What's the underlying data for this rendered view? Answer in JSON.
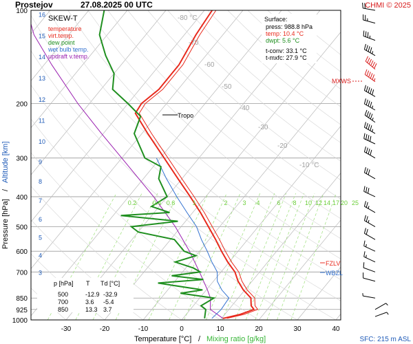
{
  "header": {
    "station": "Prostejov",
    "datetime": "27.08.2025 00 UTC",
    "credit": "CHMI © 2025"
  },
  "legend": {
    "title": "SKEW-T",
    "items": [
      {
        "label": "temperature",
        "color": "#e8291c"
      },
      {
        "label": "virt.temp.",
        "color": "#e8291c"
      },
      {
        "label": "dew point",
        "color": "#1f8f1f"
      },
      {
        "label": "wet bulb temp.",
        "color": "#3070d0"
      },
      {
        "label": "updraft v.temp.",
        "color": "#9a1fb0"
      }
    ]
  },
  "surface": {
    "title": "Surface:",
    "press": "press: 988.8 hPa",
    "temp": "temp: 10.4 °C",
    "dwpt": "dwpt: 5.6 °C",
    "tconv": "t-conv: 33.1 °C",
    "tmxfc": "t-mxfc: 27.9 °C"
  },
  "table": {
    "headers": [
      "p [hPa]",
      "T",
      "Td [°C]"
    ],
    "rows": [
      [
        "500",
        "-12.9",
        "-32.9"
      ],
      [
        "700",
        "3.6",
        "-5.4"
      ],
      [
        "850",
        "13.3",
        "3.7"
      ]
    ]
  },
  "markers": {
    "tropo": "Tropo",
    "mxws": "MXWS",
    "fzlv": "FZLV",
    "wbzl": "WBZL"
  },
  "axes": {
    "xlabel_temp": "Temperature [°C]",
    "xlabel_sep": " / ",
    "xlabel_mix": "Mixing ratio [g/kg]",
    "ylabel_pressure": "Pressure [hPa]",
    "ylabel_sep": " / ",
    "ylabel_altitude": "Altitude [km]",
    "sfc_note": "SFC: 215 m ASL"
  },
  "colors": {
    "temperature": "#e8291c",
    "dewpoint": "#1f8f1f",
    "wetbulb": "#3070d0",
    "updraft": "#9a1fb0",
    "isobar": "#9a9a9a",
    "isotherm": "#b8b8b8",
    "mixing": "#9de07a",
    "altitude": "#1f5bb8",
    "title_red": "#d81b1b"
  },
  "chart_data": {
    "type": "line",
    "title": "SKEW-T",
    "xlim": [
      -35,
      43
    ],
    "ylim_hpa": [
      1000,
      100
    ],
    "x_ticks": [
      -30,
      -20,
      -10,
      0,
      10,
      20,
      30,
      40
    ],
    "pressure_ticks": [
      100,
      200,
      300,
      400,
      500,
      600,
      700,
      850,
      925,
      1000
    ],
    "altitude_ticks_km": [
      1,
      2,
      3,
      4,
      5,
      6,
      7,
      8,
      9,
      10,
      11,
      12,
      13,
      14,
      15,
      16
    ],
    "isotherm_labels": [
      -80,
      -70,
      -60,
      -50,
      -40,
      -30,
      -20,
      -10
    ],
    "mixing_ratio_labels": [
      0.2,
      0.4,
      0.6,
      1,
      2,
      3,
      4,
      6,
      8,
      10,
      12,
      14,
      17,
      20,
      25
    ],
    "series": [
      {
        "name": "temperature",
        "points": [
          [
            988.8,
            10.4
          ],
          [
            960,
            14.0
          ],
          [
            925,
            16.5
          ],
          [
            900,
            15.0
          ],
          [
            850,
            13.3
          ],
          [
            800,
            9.6
          ],
          [
            750,
            6.4
          ],
          [
            700,
            3.6
          ],
          [
            650,
            -0.4
          ],
          [
            600,
            -4.3
          ],
          [
            550,
            -8.3
          ],
          [
            500,
            -12.9
          ],
          [
            450,
            -18.0
          ],
          [
            400,
            -24.0
          ],
          [
            350,
            -31.0
          ],
          [
            300,
            -39.0
          ],
          [
            250,
            -48.5
          ],
          [
            215,
            -56.0
          ],
          [
            200,
            -56.5
          ],
          [
            180,
            -55.0
          ],
          [
            150,
            -55.0
          ],
          [
            120,
            -57.0
          ],
          [
            100,
            -58.0
          ]
        ]
      },
      {
        "name": "dew point",
        "points": [
          [
            988.8,
            5.6
          ],
          [
            925,
            4.0
          ],
          [
            900,
            2.0
          ],
          [
            850,
            3.7
          ],
          [
            820,
            -6.0
          ],
          [
            800,
            -1.0
          ],
          [
            760,
            -14.0
          ],
          [
            740,
            -3.0
          ],
          [
            720,
            -12.0
          ],
          [
            700,
            -5.4
          ],
          [
            680,
            -8.0
          ],
          [
            650,
            -14.0
          ],
          [
            620,
            -10.0
          ],
          [
            600,
            -14.0
          ],
          [
            550,
            -19.0
          ],
          [
            520,
            -30.0
          ],
          [
            500,
            -32.9
          ],
          [
            480,
            -22.0
          ],
          [
            460,
            -38.0
          ],
          [
            450,
            -26.0
          ],
          [
            430,
            -32.0
          ],
          [
            400,
            -30.0
          ],
          [
            350,
            -36.0
          ],
          [
            320,
            -38.0
          ],
          [
            300,
            -44.0
          ],
          [
            250,
            -52.0
          ],
          [
            220,
            -54.0
          ],
          [
            200,
            -60.0
          ],
          [
            180,
            -67.0
          ],
          [
            160,
            -70.0
          ],
          [
            140,
            -76.0
          ],
          [
            120,
            -82.0
          ],
          [
            100,
            -86.0
          ]
        ]
      },
      {
        "name": "wet bulb temp.",
        "points": [
          [
            988.8,
            7.5
          ],
          [
            925,
            8.0
          ],
          [
            850,
            7.6
          ],
          [
            800,
            4.0
          ],
          [
            750,
            1.0
          ],
          [
            700,
            -1.0
          ],
          [
            650,
            -4.5
          ],
          [
            600,
            -8.0
          ],
          [
            550,
            -12.0
          ],
          [
            500,
            -16.0
          ],
          [
            450,
            -21.5
          ],
          [
            400,
            -27.5
          ],
          [
            350,
            -34.0
          ],
          [
            300,
            -41.0
          ]
        ]
      },
      {
        "name": "updraft v.temp.",
        "points": [
          [
            988.8,
            10.4
          ],
          [
            925,
            5.2
          ],
          [
            850,
            2.8
          ],
          [
            800,
            0.3
          ],
          [
            700,
            -5.6
          ],
          [
            600,
            -12.6
          ],
          [
            500,
            -21.5
          ],
          [
            400,
            -33.5
          ],
          [
            300,
            -50.0
          ],
          [
            250,
            -60.5
          ],
          [
            200,
            -73.0
          ],
          [
            150,
            -88.0
          ],
          [
            120,
            -99.0
          ],
          [
            100,
            -106.0
          ]
        ]
      }
    ],
    "levels": {
      "tropopause_hpa": 215,
      "fzlv_hpa": 680,
      "wbzl_hpa": 700,
      "mxws_hpa": 155
    },
    "wind_barbs": [
      {
        "p": 975,
        "dir": 70,
        "spd": 5
      },
      {
        "p": 925,
        "dir": 60,
        "spd": 5
      },
      {
        "p": 850,
        "dir": 280,
        "spd": 5
      },
      {
        "p": 750,
        "dir": 285,
        "spd": 10
      },
      {
        "p": 700,
        "dir": 290,
        "spd": 10
      },
      {
        "p": 650,
        "dir": 295,
        "spd": 15
      },
      {
        "p": 600,
        "dir": 295,
        "spd": 15
      },
      {
        "p": 550,
        "dir": 300,
        "spd": 20
      },
      {
        "p": 500,
        "dir": 300,
        "spd": 25
      },
      {
        "p": 450,
        "dir": 300,
        "spd": 25
      },
      {
        "p": 400,
        "dir": 295,
        "spd": 30
      },
      {
        "p": 350,
        "dir": 300,
        "spd": 30
      },
      {
        "p": 300,
        "dir": 300,
        "spd": 40
      },
      {
        "p": 270,
        "dir": 295,
        "spd": 40
      },
      {
        "p": 250,
        "dir": 300,
        "spd": 45
      },
      {
        "p": 230,
        "dir": 305,
        "spd": 45
      },
      {
        "p": 210,
        "dir": 300,
        "spd": 45
      },
      {
        "p": 190,
        "dir": 300,
        "spd": 50
      },
      {
        "p": 170,
        "dir": 305,
        "spd": 55
      },
      {
        "p": 155,
        "dir": 310,
        "spd": 60
      },
      {
        "p": 140,
        "dir": 300,
        "spd": 45
      },
      {
        "p": 125,
        "dir": 290,
        "spd": 35
      },
      {
        "p": 110,
        "dir": 285,
        "spd": 25
      },
      {
        "p": 100,
        "dir": 280,
        "spd": 20
      }
    ]
  }
}
